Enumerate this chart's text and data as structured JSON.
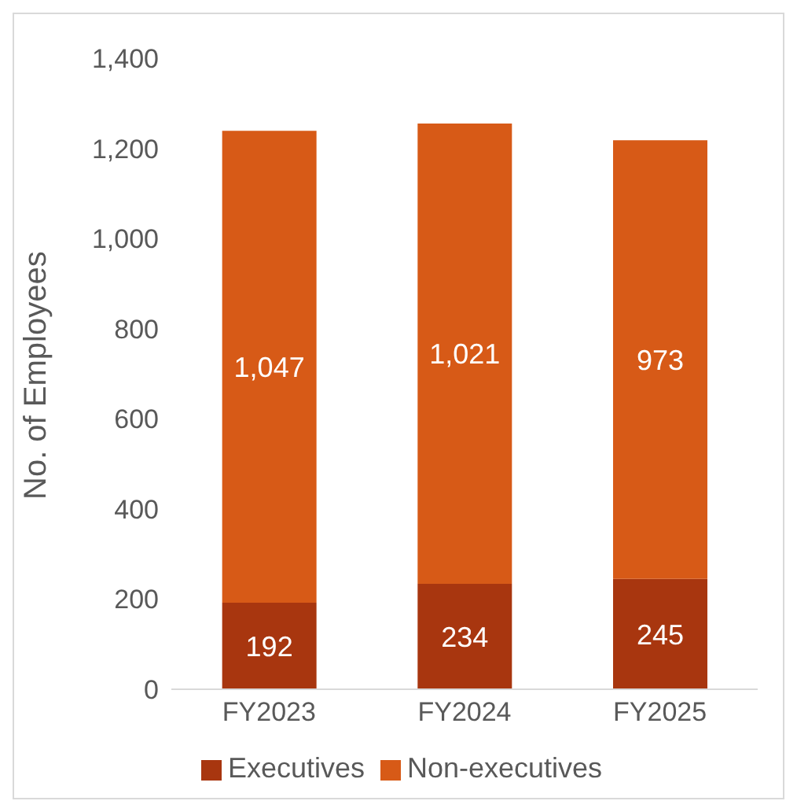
{
  "chart_data": {
    "type": "bar",
    "stacked": true,
    "categories": [
      "FY2023",
      "FY2024",
      "FY2025"
    ],
    "series": [
      {
        "name": "Executives",
        "color": "#a8360f",
        "values": [
          192,
          234,
          245
        ],
        "value_labels": [
          "192",
          "234",
          "245"
        ]
      },
      {
        "name": "Non-executives",
        "color": "#d75a17",
        "values": [
          1047,
          1021,
          973
        ],
        "value_labels": [
          "1,047",
          "1,021",
          "973"
        ]
      }
    ],
    "ylabel": "No. of Employees",
    "ylim": [
      0,
      1400
    ],
    "yticks": [
      0,
      200,
      400,
      600,
      800,
      {
        "value": 1000,
        "label": "1,000"
      },
      {
        "value": 1200,
        "label": "1,200"
      },
      {
        "value": 1400,
        "label": "1,400"
      }
    ],
    "grid": false,
    "legend": "bottom"
  }
}
